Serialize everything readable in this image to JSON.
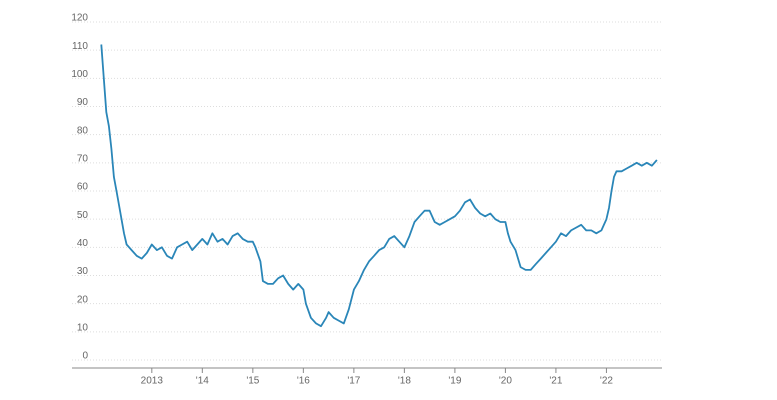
{
  "chart_data": {
    "type": "line",
    "x": [
      2012.0,
      2012.05,
      2012.1,
      2012.15,
      2012.2,
      2012.25,
      2012.3,
      2012.38,
      2012.45,
      2012.5,
      2012.6,
      2012.7,
      2012.8,
      2012.9,
      2013.0,
      2013.1,
      2013.2,
      2013.3,
      2013.4,
      2013.5,
      2013.6,
      2013.7,
      2013.8,
      2013.9,
      2014.0,
      2014.1,
      2014.2,
      2014.3,
      2014.4,
      2014.5,
      2014.6,
      2014.7,
      2014.8,
      2014.9,
      2015.0,
      2015.05,
      2015.15,
      2015.2,
      2015.3,
      2015.4,
      2015.5,
      2015.6,
      2015.7,
      2015.8,
      2015.9,
      2016.0,
      2016.05,
      2016.15,
      2016.25,
      2016.35,
      2016.45,
      2016.5,
      2016.6,
      2016.7,
      2016.8,
      2016.9,
      2017.0,
      2017.1,
      2017.2,
      2017.3,
      2017.4,
      2017.5,
      2017.6,
      2017.7,
      2017.8,
      2017.9,
      2018.0,
      2018.1,
      2018.2,
      2018.3,
      2018.4,
      2018.5,
      2018.6,
      2018.7,
      2018.8,
      2018.9,
      2019.0,
      2019.1,
      2019.2,
      2019.3,
      2019.4,
      2019.5,
      2019.6,
      2019.7,
      2019.8,
      2019.9,
      2020.0,
      2020.05,
      2020.1,
      2020.2,
      2020.3,
      2020.4,
      2020.5,
      2020.6,
      2020.7,
      2020.8,
      2020.9,
      2021.0,
      2021.1,
      2021.2,
      2021.3,
      2021.4,
      2021.5,
      2021.6,
      2021.7,
      2021.8,
      2021.9,
      2022.0,
      2022.05,
      2022.1,
      2022.15,
      2022.2,
      2022.3,
      2022.4,
      2022.5,
      2022.6,
      2022.7,
      2022.8,
      2022.9,
      2023.0
    ],
    "series": [
      {
        "color": "#2a86b8",
        "values": [
          112,
          100,
          88,
          83,
          75,
          65,
          60,
          52,
          45,
          41,
          39,
          37,
          36,
          38,
          41,
          39,
          40,
          37,
          36,
          40,
          41,
          42,
          39,
          41,
          43,
          41,
          45,
          42,
          43,
          41,
          44,
          45,
          43,
          42,
          42,
          40,
          35,
          28,
          27,
          27,
          29,
          30,
          27,
          25,
          27,
          25,
          20,
          15,
          13,
          12,
          15,
          17,
          15,
          14,
          13,
          18,
          25,
          28,
          32,
          35,
          37,
          39,
          40,
          43,
          44,
          42,
          40,
          44,
          49,
          51,
          53,
          53,
          49,
          48,
          49,
          50,
          51,
          53,
          56,
          57,
          54,
          52,
          51,
          52,
          50,
          49,
          49,
          45,
          42,
          39,
          33,
          32,
          32,
          34,
          36,
          38,
          40,
          42,
          45,
          44,
          46,
          47,
          48,
          46,
          46,
          45,
          46,
          50,
          54,
          60,
          65,
          67,
          67,
          68,
          69,
          70,
          69,
          70,
          69,
          71
        ]
      }
    ],
    "xlim": [
      2011.42,
      2023.1
    ],
    "xticks": [
      {
        "value": 2013,
        "label": "2013"
      },
      {
        "value": 2014,
        "label": "'14"
      },
      {
        "value": 2015,
        "label": "'15"
      },
      {
        "value": 2016,
        "label": "'16"
      },
      {
        "value": 2017,
        "label": "'17"
      },
      {
        "value": 2018,
        "label": "'18"
      },
      {
        "value": 2019,
        "label": "'19"
      },
      {
        "value": 2020,
        "label": "'20"
      },
      {
        "value": 2021,
        "label": "'21"
      },
      {
        "value": 2022,
        "label": "'22"
      }
    ],
    "ylim": [
      0,
      120
    ],
    "yticks": [
      0,
      10,
      20,
      30,
      40,
      50,
      60,
      70,
      80,
      90,
      100,
      110,
      120
    ],
    "grid": true
  }
}
